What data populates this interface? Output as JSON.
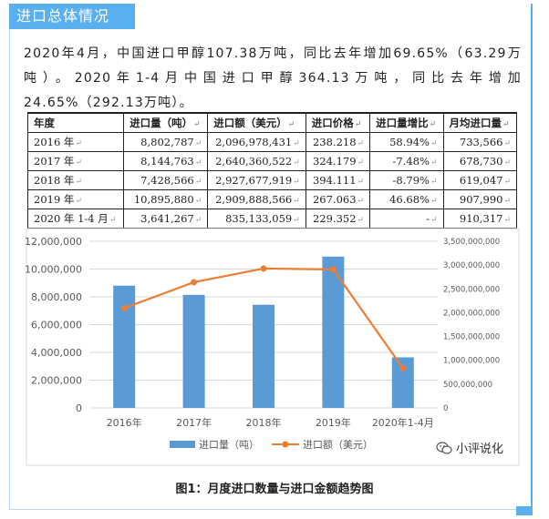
{
  "header": {
    "title": "进口总体情况"
  },
  "intro": {
    "text": "2020年4月，中国进口甲醇107.38万吨，同比去年增加69.65%（63.29万吨）。2020年1-4月中国进口甲醇364.13万吨，同比去年增加24.65%（292.13万吨）。"
  },
  "table": {
    "headers": [
      "年度",
      "进口量（吨）",
      "进口额（美元）",
      "进口价格",
      "进口量增比",
      "月均进口量"
    ],
    "rows": [
      [
        "2016 年",
        "8,802,787",
        "2,096,978,431",
        "238.218",
        "58.94%",
        "733,566"
      ],
      [
        "2017 年",
        "8,144,763",
        "2,640,360,522",
        "324.179",
        "-7.48%",
        "678,730"
      ],
      [
        "2018 年",
        "7,428,566",
        "2,927,677,919",
        "394.111",
        "-8.79%",
        "619,047"
      ],
      [
        "2019 年",
        "10,895,880",
        "2,909,888,566",
        "267.063",
        "46.68%",
        "907,990"
      ],
      [
        "2020 年 1-4 月",
        "3,641,267",
        "835,133,059",
        "229.352",
        "-",
        "910,317"
      ]
    ],
    "para_mark": "↵"
  },
  "chart_data": {
    "type": "bar",
    "categories": [
      "2016年",
      "2017年",
      "2018年",
      "2019年",
      "2020年1-4月"
    ],
    "series": [
      {
        "name": "进口量（吨）",
        "type": "bar",
        "axis": "left",
        "color": "#5b9bd5",
        "values": [
          8802787,
          8144763,
          7428566,
          10895880,
          3641267
        ]
      },
      {
        "name": "进口额（美元）",
        "type": "line",
        "axis": "right",
        "color": "#ed7d31",
        "values": [
          2096978431,
          2640360522,
          2927677919,
          2909888566,
          835133059
        ]
      }
    ],
    "ylim_left": [
      0,
      12000000
    ],
    "ylim_right": [
      0,
      3500000000
    ],
    "yticks_left": [
      "0",
      "2,000,000",
      "4,000,000",
      "6,000,000",
      "8,000,000",
      "10,000,000",
      "12,000,000"
    ],
    "yticks_right": [
      "0",
      "500,000,000",
      "1,000,000,000",
      "1,500,000,000",
      "2,000,000,000",
      "2,500,000,000",
      "3,000,000,000",
      "3,500,000,000"
    ],
    "grid": true,
    "legend_position": "bottom"
  },
  "watermark": {
    "text": "小评说化"
  },
  "caption": {
    "text": "图1：月度进口数量与进口金额趋势图"
  }
}
